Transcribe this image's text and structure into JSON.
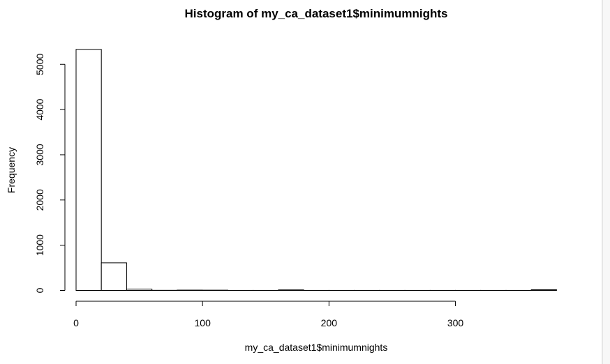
{
  "chart_data": {
    "type": "bar",
    "title": "Histogram of my_ca_dataset1$minimumnights",
    "xlabel": "my_ca_dataset1$minimumnights",
    "ylabel": "Frequency",
    "bins": [
      {
        "from": 0,
        "to": 20,
        "count": 5330
      },
      {
        "from": 20,
        "to": 40,
        "count": 610
      },
      {
        "from": 40,
        "to": 60,
        "count": 30
      },
      {
        "from": 60,
        "to": 80,
        "count": 3
      },
      {
        "from": 80,
        "to": 100,
        "count": 8
      },
      {
        "from": 100,
        "to": 120,
        "count": 6
      },
      {
        "from": 120,
        "to": 140,
        "count": 1
      },
      {
        "from": 140,
        "to": 160,
        "count": 1
      },
      {
        "from": 160,
        "to": 180,
        "count": 12
      },
      {
        "from": 180,
        "to": 200,
        "count": 2
      },
      {
        "from": 200,
        "to": 220,
        "count": 1
      },
      {
        "from": 220,
        "to": 240,
        "count": 1
      },
      {
        "from": 240,
        "to": 260,
        "count": 1
      },
      {
        "from": 260,
        "to": 280,
        "count": 1
      },
      {
        "from": 280,
        "to": 300,
        "count": 1
      },
      {
        "from": 300,
        "to": 320,
        "count": 1
      },
      {
        "from": 320,
        "to": 340,
        "count": 1
      },
      {
        "from": 340,
        "to": 360,
        "count": 1
      },
      {
        "from": 360,
        "to": 380,
        "count": 15
      }
    ],
    "xticks": [
      0,
      100,
      200,
      300
    ],
    "yticks": [
      0,
      1000,
      2000,
      3000,
      4000,
      5000
    ],
    "xlim": [
      0,
      380
    ],
    "ylim": [
      0,
      5330
    ],
    "grid": false
  }
}
